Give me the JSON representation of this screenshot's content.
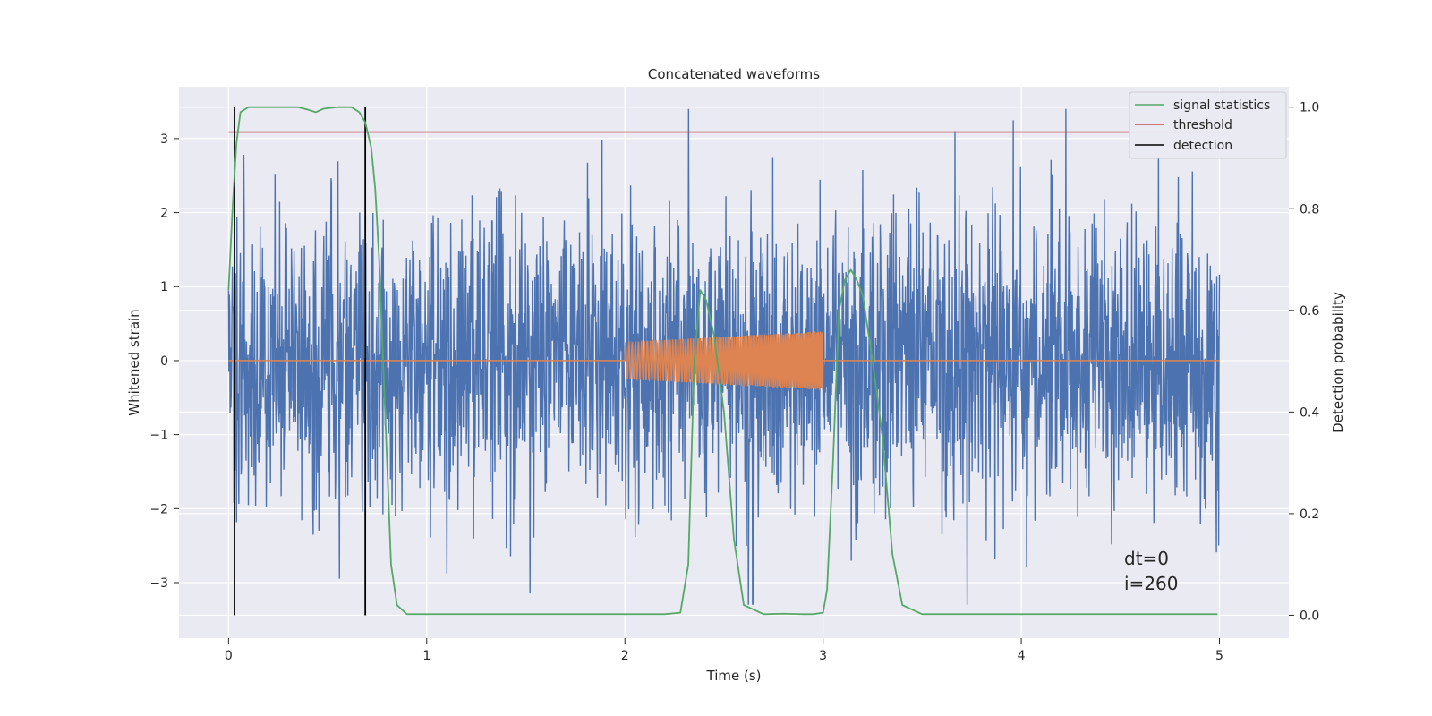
{
  "chart_data": {
    "type": "line",
    "title": "Concatenated waveforms",
    "xlabel": "Time (s)",
    "ylabel_left": "Whitened strain",
    "ylabel_right": "Detection probability",
    "xlim": [
      -0.25,
      5.35
    ],
    "ylim_left": [
      -3.75,
      3.7
    ],
    "ylim_right": [
      -0.045,
      1.04
    ],
    "x_ticks": [
      0,
      1,
      2,
      3,
      4,
      5
    ],
    "x_tick_labels": [
      "0",
      "1",
      "2",
      "3",
      "4",
      "5"
    ],
    "y_left_ticks": [
      -3,
      -2,
      -1,
      0,
      1,
      2,
      3
    ],
    "y_left_tick_labels": [
      "−3",
      "−2",
      "−1",
      "0",
      "1",
      "2",
      "3"
    ],
    "y_right_ticks": [
      0.0,
      0.2,
      0.4,
      0.6,
      0.8,
      1.0
    ],
    "y_right_tick_labels": [
      "0.0",
      "0.2",
      "0.4",
      "0.6",
      "0.8",
      "1.0"
    ],
    "grid": true,
    "legend_position": "top-right",
    "legend": [
      "signal statistics",
      "threshold",
      "detection"
    ],
    "series": [
      {
        "name": "whitened strain noise",
        "axis": "left",
        "color": "#4c72b0",
        "style": "dense noise",
        "x_range": [
          0,
          5
        ],
        "typical_amplitude": 1.0,
        "max": 3.4,
        "min": -3.3
      },
      {
        "name": "injected signal",
        "axis": "left",
        "color": "#dd8452",
        "x_flat": [
          0,
          5
        ],
        "chirp_start": 2.0,
        "chirp_end": 3.0,
        "chirp_amp_start": 0.25,
        "chirp_amp_end": 0.4
      },
      {
        "name": "signal statistics",
        "axis": "right",
        "color": "#55a868",
        "x": [
          0.0,
          0.02,
          0.04,
          0.06,
          0.1,
          0.2,
          0.35,
          0.4,
          0.44,
          0.48,
          0.55,
          0.62,
          0.66,
          0.69,
          0.72,
          0.74,
          0.76,
          0.78,
          0.8,
          0.82,
          0.85,
          0.9,
          1.5,
          2.2,
          2.28,
          2.32,
          2.35,
          2.38,
          2.41,
          2.45,
          2.5,
          2.55,
          2.6,
          2.7,
          2.8,
          2.9,
          2.95,
          3.0,
          3.02,
          3.05,
          3.08,
          3.11,
          3.14,
          3.17,
          3.2,
          3.25,
          3.3,
          3.35,
          3.4,
          3.5,
          4.2,
          4.99
        ],
        "values": [
          0.64,
          0.8,
          0.93,
          0.99,
          1.0,
          1.0,
          1.0,
          0.995,
          0.99,
          0.997,
          1.0,
          1.0,
          0.99,
          0.97,
          0.92,
          0.84,
          0.7,
          0.5,
          0.3,
          0.1,
          0.02,
          0.002,
          0.002,
          0.002,
          0.005,
          0.1,
          0.5,
          0.64,
          0.62,
          0.55,
          0.4,
          0.15,
          0.02,
          0.002,
          0.003,
          0.002,
          0.002,
          0.005,
          0.05,
          0.3,
          0.6,
          0.66,
          0.68,
          0.66,
          0.63,
          0.5,
          0.35,
          0.12,
          0.02,
          0.002,
          0.002,
          0.002
        ]
      },
      {
        "name": "threshold",
        "axis": "right",
        "color": "#c44e52",
        "x": [
          0,
          5
        ],
        "values": [
          0.951,
          0.951
        ]
      },
      {
        "name": "detection",
        "axis": "right",
        "color": "#000000",
        "x": [
          0.03,
          0.69
        ],
        "range": [
          0.0,
          1.0
        ]
      }
    ],
    "annotations": [
      "dt=0",
      "i=260"
    ]
  }
}
